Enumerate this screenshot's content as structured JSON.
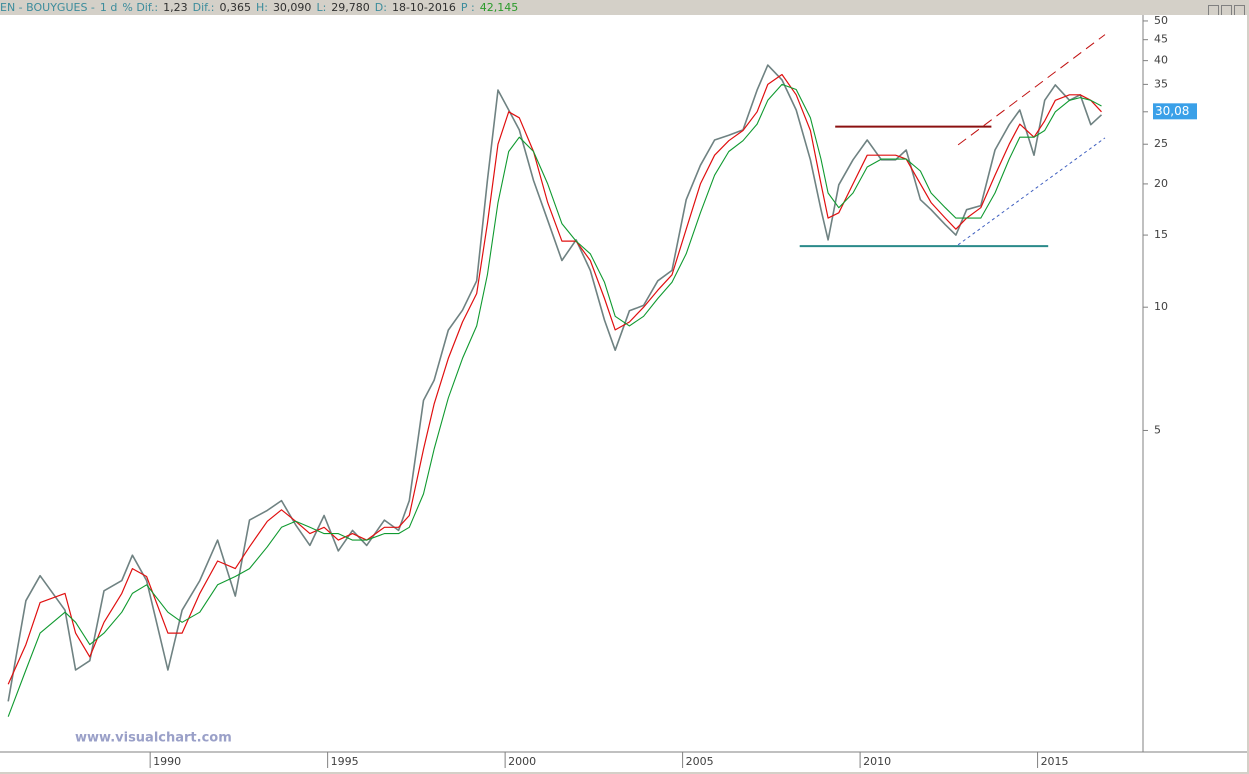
{
  "header": {
    "symbol": "EN - BOUYGUES -",
    "period": "1 d",
    "fields": [
      {
        "label": "% Dif.:",
        "value": "1,23"
      },
      {
        "label": "Dif.:",
        "value": "0,365"
      },
      {
        "label": "H:",
        "value": "30,090"
      },
      {
        "label": "L:",
        "value": "29,780"
      },
      {
        "label": "D:",
        "value": "18-10-2016"
      },
      {
        "label": "P :",
        "value": "42,145"
      }
    ]
  },
  "watermark": "www.visualchart.com",
  "chart_data": {
    "type": "line",
    "log_scale": true,
    "grid": false,
    "xlim": [
      1985.77,
      2017.97
    ],
    "xticks": [
      1990,
      1995,
      2000,
      2005,
      2010,
      2015
    ],
    "ylim": [
      0.82,
      51.7
    ],
    "yticks": [
      5,
      10,
      15,
      20,
      25,
      30,
      35,
      40,
      45,
      50
    ],
    "last_price_label": "30,08",
    "last_price": 30.08,
    "x": [
      1986.0,
      1986.5,
      1986.9,
      1987.6,
      1987.9,
      1988.3,
      1988.7,
      1989.2,
      1989.5,
      1989.9,
      1990.5,
      1990.9,
      1991.4,
      1991.9,
      1992.4,
      1992.8,
      1993.3,
      1993.7,
      1994.1,
      1994.5,
      1994.9,
      1995.3,
      1995.7,
      1996.1,
      1996.6,
      1997.0,
      1997.3,
      1997.7,
      1998.0,
      1998.4,
      1998.8,
      1999.2,
      1999.5,
      1999.8,
      2000.1,
      2000.4,
      2000.8,
      2001.2,
      2001.6,
      2002.0,
      2002.4,
      2002.8,
      2003.1,
      2003.5,
      2003.9,
      2004.3,
      2004.7,
      2005.1,
      2005.5,
      2005.9,
      2006.3,
      2006.7,
      2007.1,
      2007.4,
      2007.8,
      2008.2,
      2008.6,
      2008.9,
      2009.1,
      2009.4,
      2009.8,
      2010.2,
      2010.6,
      2011.0,
      2011.3,
      2011.7,
      2012.0,
      2012.4,
      2012.7,
      2013.0,
      2013.4,
      2013.8,
      2014.2,
      2014.5,
      2014.9,
      2015.2,
      2015.5,
      2015.9,
      2016.2,
      2016.5,
      2016.8
    ],
    "series": [
      {
        "color": "#6f8282",
        "width": 1.6,
        "values": [
          1.09,
          1.92,
          2.21,
          1.82,
          1.3,
          1.37,
          2.03,
          2.15,
          2.48,
          2.15,
          1.3,
          1.82,
          2.15,
          2.7,
          1.97,
          3.02,
          3.19,
          3.37,
          2.94,
          2.62,
          3.1,
          2.54,
          2.85,
          2.62,
          3.02,
          2.85,
          3.37,
          5.92,
          6.63,
          8.79,
          9.83,
          11.6,
          20.4,
          33.9,
          30.3,
          27.1,
          20.4,
          16.3,
          13.0,
          14.6,
          12.3,
          9.3,
          7.85,
          9.8,
          10.1,
          11.6,
          12.3,
          18.3,
          22.2,
          25.6,
          26.3,
          27.1,
          33.9,
          39.0,
          35.9,
          30.3,
          22.9,
          17.3,
          14.6,
          19.9,
          22.9,
          25.6,
          22.9,
          22.9,
          24.2,
          18.3,
          17.3,
          15.9,
          15.0,
          17.3,
          17.7,
          24.2,
          27.9,
          30.3,
          23.5,
          32.0,
          34.9,
          32.0,
          33.0,
          27.9,
          29.5
        ]
      },
      {
        "color": "#e01010",
        "width": 1.2,
        "values": [
          1.2,
          1.5,
          1.9,
          2.0,
          1.6,
          1.4,
          1.7,
          2.0,
          2.3,
          2.2,
          1.6,
          1.6,
          2.0,
          2.4,
          2.3,
          2.6,
          3.0,
          3.2,
          3.0,
          2.8,
          2.9,
          2.7,
          2.8,
          2.7,
          2.9,
          2.9,
          3.1,
          4.5,
          5.8,
          7.5,
          9.2,
          10.8,
          16,
          25,
          30,
          29,
          24,
          18,
          14.5,
          14.5,
          13,
          10.5,
          8.8,
          9.2,
          10,
          11,
          12,
          15.5,
          20,
          23.5,
          25.5,
          27,
          30,
          35,
          37,
          33,
          27,
          20,
          16.5,
          17,
          20,
          23.5,
          23.5,
          23.5,
          23,
          20,
          18,
          16.5,
          15.5,
          16.5,
          17.5,
          21,
          25,
          28,
          26,
          28.5,
          32,
          33,
          33,
          32,
          30
        ]
      },
      {
        "color": "#109a30",
        "width": 1.1,
        "values": [
          1.0,
          1.3,
          1.6,
          1.8,
          1.7,
          1.5,
          1.6,
          1.8,
          2.0,
          2.1,
          1.8,
          1.7,
          1.8,
          2.1,
          2.2,
          2.3,
          2.6,
          2.9,
          3.0,
          2.9,
          2.8,
          2.8,
          2.7,
          2.7,
          2.8,
          2.8,
          2.9,
          3.5,
          4.5,
          6.0,
          7.5,
          9.0,
          12,
          18,
          24,
          26,
          24,
          20,
          16,
          14.5,
          13.5,
          11.5,
          9.5,
          9,
          9.5,
          10.5,
          11.5,
          13.5,
          17,
          21,
          24,
          25.5,
          28,
          32,
          35,
          34,
          29,
          23,
          19,
          17.5,
          19,
          22,
          23,
          23,
          23,
          21.5,
          19,
          17.5,
          16.5,
          16.5,
          16.5,
          19,
          23,
          26,
          26,
          27,
          30,
          32,
          32.5,
          32,
          31
        ]
      },
      {
        "color": "#8b1010",
        "width": 2,
        "x": [
          2009.3,
          2013.7
        ],
        "values": [
          27.6,
          27.6
        ]
      },
      {
        "color": "#2a8a8a",
        "width": 2,
        "x": [
          2008.3,
          2015.3
        ],
        "values": [
          14.1,
          14.1
        ]
      },
      {
        "color": "#c01010",
        "width": 1,
        "dash": "10 6",
        "x": [
          2012.76,
          2016.9
        ],
        "values": [
          24.9,
          46.3
        ]
      },
      {
        "color": "#4060c0",
        "width": 1,
        "dash": "3 3",
        "x": [
          2012.76,
          2016.9
        ],
        "values": [
          14.2,
          25.9
        ]
      }
    ]
  }
}
